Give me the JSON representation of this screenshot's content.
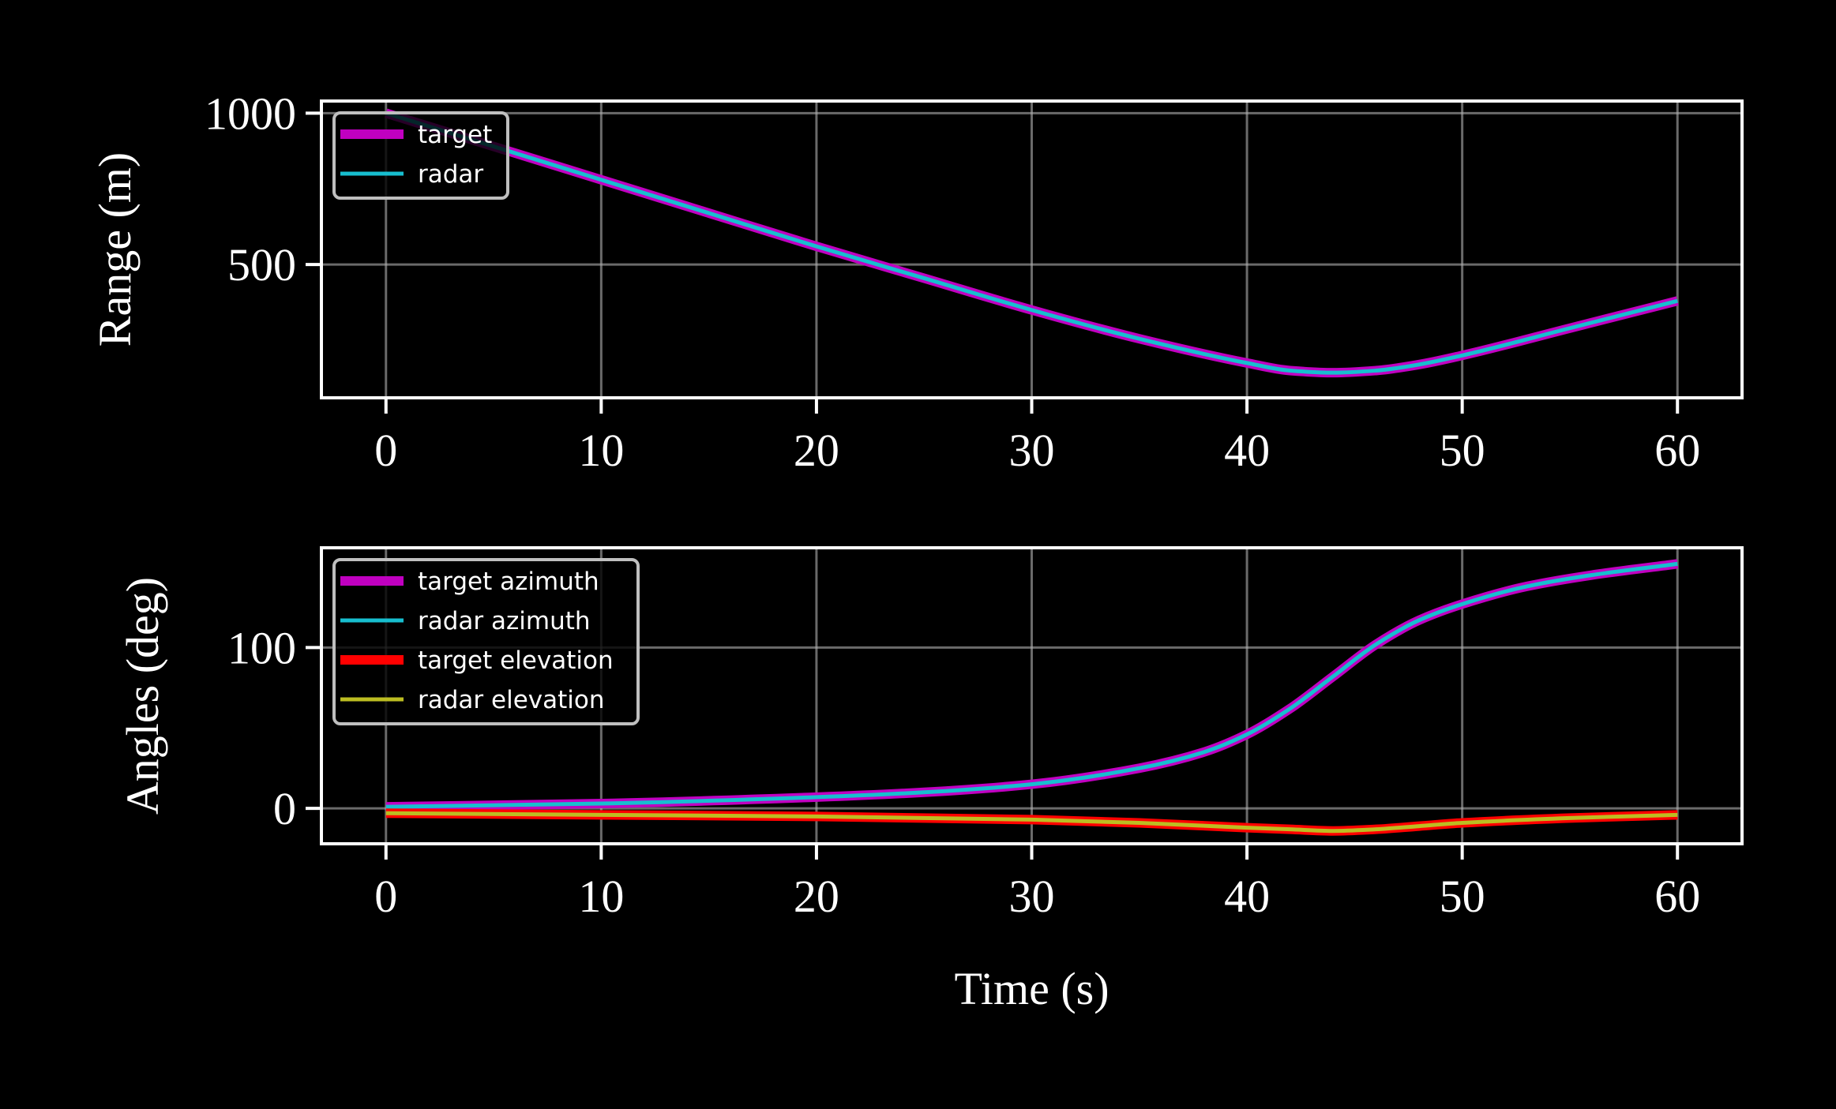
{
  "chart_data": [
    {
      "type": "line",
      "ylabel": "Range (m)",
      "xlabel": "",
      "xlim": [
        -3,
        63
      ],
      "ylim": [
        60,
        1040
      ],
      "xticks": [
        0,
        10,
        20,
        30,
        40,
        50,
        60
      ],
      "yticks": [
        500,
        1000
      ],
      "grid": true,
      "legend_position": "upper-left",
      "series": [
        {
          "name": "target",
          "color": "#c000c0",
          "style": "thick",
          "x": [
            0,
            5,
            10,
            15,
            20,
            25,
            30,
            35,
            40,
            42,
            44,
            46,
            48,
            50,
            55,
            60
          ],
          "y": [
            1000,
            890,
            780,
            670,
            560,
            455,
            350,
            255,
            175,
            150,
            143,
            150,
            170,
            200,
            290,
            380
          ]
        },
        {
          "name": "radar",
          "color": "#17becf",
          "style": "thin",
          "x": [
            0,
            5,
            10,
            15,
            20,
            25,
            30,
            35,
            40,
            42,
            44,
            46,
            48,
            50,
            55,
            60
          ],
          "y": [
            1000,
            890,
            780,
            670,
            560,
            455,
            350,
            255,
            175,
            150,
            143,
            150,
            170,
            200,
            290,
            380
          ]
        }
      ]
    },
    {
      "type": "line",
      "ylabel": "Angles (deg)",
      "xlabel": "Time (s)",
      "xlim": [
        -3,
        63
      ],
      "ylim": [
        -22,
        162
      ],
      "xticks": [
        0,
        10,
        20,
        30,
        40,
        50,
        60
      ],
      "yticks": [
        0,
        100
      ],
      "grid": true,
      "legend_position": "upper-left",
      "series": [
        {
          "name": "target azimuth",
          "color": "#c000c0",
          "style": "thick",
          "x": [
            0,
            10,
            20,
            25,
            30,
            35,
            38,
            40,
            42,
            44,
            46,
            48,
            50,
            53,
            56,
            60
          ],
          "y": [
            1,
            3,
            7,
            10,
            15,
            25,
            35,
            46,
            62,
            82,
            102,
            117,
            127,
            138,
            145,
            152
          ]
        },
        {
          "name": "radar azimuth",
          "color": "#17becf",
          "style": "thin",
          "x": [
            0,
            10,
            20,
            25,
            30,
            35,
            38,
            40,
            42,
            44,
            46,
            48,
            50,
            53,
            56,
            60
          ],
          "y": [
            1,
            3,
            7,
            10,
            15,
            25,
            35,
            46,
            62,
            82,
            102,
            117,
            127,
            138,
            145,
            152
          ]
        },
        {
          "name": "target elevation",
          "color": "#ff0000",
          "style": "thick",
          "x": [
            0,
            10,
            20,
            30,
            35,
            40,
            42,
            44,
            46,
            48,
            50,
            55,
            60
          ],
          "y": [
            -3,
            -4,
            -5,
            -7,
            -9,
            -12,
            -13,
            -14,
            -13,
            -11,
            -9,
            -6,
            -4
          ]
        },
        {
          "name": "radar elevation",
          "color": "#bcbd22",
          "style": "thin",
          "x": [
            0,
            10,
            20,
            30,
            35,
            40,
            42,
            44,
            46,
            48,
            50,
            55,
            60
          ],
          "y": [
            -3,
            -4,
            -5,
            -7,
            -9,
            -12,
            -13,
            -14,
            -13,
            -11,
            -9,
            -6,
            -4
          ]
        }
      ]
    }
  ]
}
